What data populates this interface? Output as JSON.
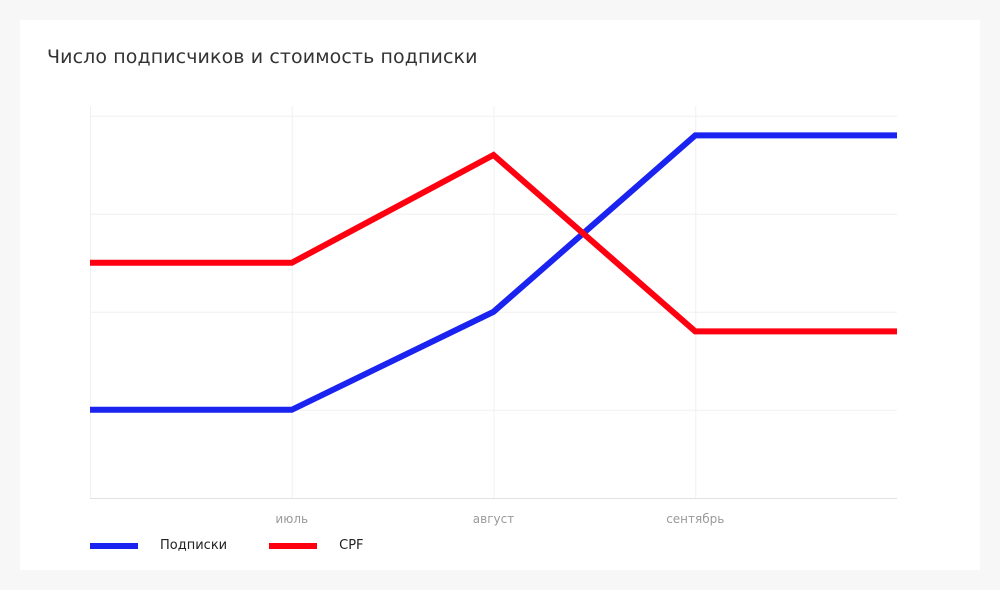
{
  "chart_data": {
    "type": "line",
    "title": "Число подписчиков и стоимость подписки",
    "categories": [
      "",
      "июль",
      "август",
      "сентябрь",
      ""
    ],
    "series": [
      {
        "name": "Подписки",
        "color": "#1a23f0",
        "values": [
          1.0,
          1.0,
          2.0,
          3.8,
          3.8
        ]
      },
      {
        "name": "CPF",
        "color": "#ff0010",
        "values": [
          2.5,
          2.5,
          3.6,
          1.8,
          1.8
        ]
      }
    ],
    "ylim": [
      0.1,
      4.1
    ],
    "grid": true,
    "legend": "bottom-left"
  }
}
